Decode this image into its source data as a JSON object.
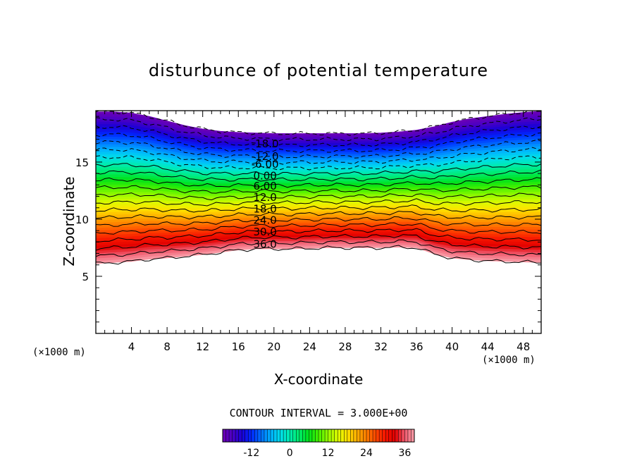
{
  "chart_data": {
    "type": "contour",
    "title": "disturbunce of potential temperature",
    "xlabel": "X-coordinate",
    "ylabel": "Z-coordinate",
    "x_unit": "(×1000 m)",
    "y_unit": "(×1000 m)",
    "xlim": [
      0,
      50
    ],
    "ylim": [
      0,
      19.5
    ],
    "xticks": [
      4,
      8,
      12,
      16,
      20,
      24,
      28,
      32,
      36,
      40,
      44,
      48
    ],
    "yticks": [
      5,
      10,
      15
    ],
    "contour_interval": 3.0,
    "contour_interval_text": "CONTOUR INTERVAL = 3.000E+00",
    "value_range": [
      -21,
      39
    ],
    "contour_levels": [
      -21,
      -18,
      -15,
      -12,
      -9,
      -6,
      -3,
      0,
      3,
      6,
      9,
      12,
      15,
      18,
      21,
      24,
      27,
      30,
      33,
      36,
      39
    ],
    "contour_labels": [
      "-18.0",
      "-12.0",
      "-6.00",
      "0.00",
      "6.00",
      "12.0",
      "18.0",
      "24.0",
      "30.0",
      "36.0"
    ],
    "label_x": 19,
    "label_z": [
      16.6,
      15.5,
      14.8,
      13.8,
      12.9,
      11.9,
      10.9,
      9.9,
      8.9,
      7.8
    ],
    "top_boundary": {
      "x": [
        0,
        2,
        4,
        6,
        8,
        10,
        12,
        14,
        16,
        18,
        20,
        22,
        24,
        26,
        28,
        30,
        32,
        34,
        36,
        38,
        40,
        42,
        44,
        46,
        48,
        50
      ],
      "z": [
        19.4,
        19.4,
        19.3,
        19.0,
        18.6,
        18.2,
        17.9,
        17.7,
        17.6,
        17.55,
        17.5,
        17.5,
        17.5,
        17.5,
        17.5,
        17.5,
        17.55,
        17.65,
        17.8,
        18.1,
        18.5,
        18.8,
        19.0,
        19.2,
        19.35,
        19.45
      ]
    },
    "bottom_boundary": {
      "x": [
        0,
        2,
        4,
        6,
        8,
        10,
        12,
        14,
        16,
        18,
        20,
        22,
        24,
        26,
        28,
        30,
        32,
        34,
        36,
        38,
        40,
        42,
        44,
        46,
        48,
        50
      ],
      "z": [
        6.1,
        6.2,
        6.3,
        6.5,
        6.6,
        6.75,
        6.9,
        7.1,
        7.3,
        7.4,
        7.4,
        7.4,
        7.45,
        7.5,
        7.5,
        7.5,
        7.5,
        7.55,
        7.5,
        6.95,
        6.6,
        6.45,
        6.35,
        6.3,
        6.25,
        6.2
      ]
    },
    "colorbar_ticks": [
      -12,
      0,
      12,
      24,
      36
    ],
    "colorbar_tick_labels": [
      "-12",
      "0",
      "12",
      "24",
      "36"
    ]
  }
}
